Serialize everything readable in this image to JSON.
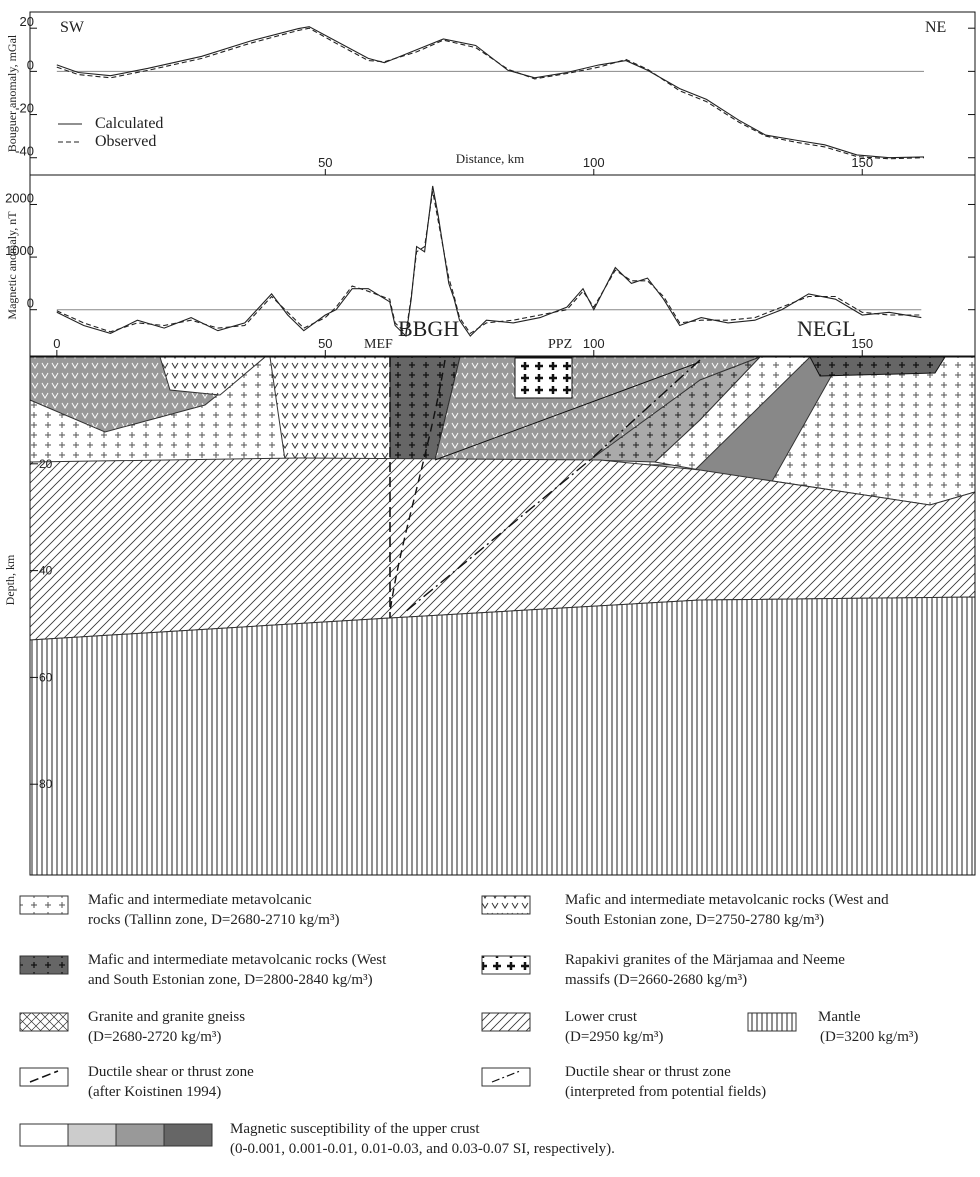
{
  "chart_data": [
    {
      "type": "line",
      "y_label": "Bouguer anomaly, mGal",
      "x_label": "Distance, km",
      "annotations": [
        "SW",
        "NE"
      ],
      "zero_line": true,
      "x": [
        0,
        4,
        10,
        17,
        27,
        36,
        45,
        47,
        52,
        58,
        61,
        67,
        72,
        78,
        84,
        89,
        95,
        101,
        106,
        110,
        116,
        121,
        127,
        132,
        138,
        143,
        149,
        155,
        161.5
      ],
      "series": [
        {
          "name": "Calculated",
          "color": "#222",
          "dashed": false,
          "values": [
            3,
            -0.5,
            -2,
            1.4,
            7,
            14,
            19.8,
            20.7,
            14,
            6,
            4,
            10,
            15,
            12,
            0.5,
            -3,
            -0.5,
            3,
            5,
            0.5,
            -8,
            -13,
            -22.6,
            -29.5,
            -32,
            -34,
            -38.7,
            -40,
            -39.6
          ]
        },
        {
          "name": "Observed",
          "color": "#222",
          "dashed": true,
          "values": [
            2,
            -1.5,
            -3,
            0.5,
            6,
            13,
            19,
            20,
            13,
            5,
            4.5,
            9,
            14.5,
            11,
            1,
            -3.5,
            -1,
            2,
            5.5,
            1,
            -9,
            -14,
            -23.5,
            -30,
            -33,
            -35,
            -39.5,
            -40.5,
            -40
          ]
        }
      ],
      "xlim": [
        -5,
        171
      ],
      "ylim": [
        -48,
        27.5
      ],
      "xticks": [
        50,
        100,
        150
      ],
      "yticks": [
        -40,
        -20,
        0,
        20
      ]
    },
    {
      "type": "line",
      "y_label": "Magnetic anomaly, nT",
      "zero_line": true,
      "x": [
        0,
        5,
        10,
        15,
        20,
        25,
        30,
        35,
        40,
        43,
        46,
        50,
        52,
        55,
        58,
        62,
        63,
        65,
        66,
        67,
        68.5,
        70,
        71,
        73,
        74,
        75,
        77,
        80,
        85,
        90,
        95,
        98,
        100,
        104,
        107,
        110,
        113,
        116,
        120,
        125,
        130,
        135,
        140,
        145,
        150,
        155,
        161
      ],
      "series": [
        {
          "color": "#222",
          "dashed": false,
          "values": [
            -50,
            -300,
            -450,
            -200,
            -350,
            -150,
            -400,
            -250,
            300,
            -100,
            -400,
            -100,
            0,
            400,
            400,
            150,
            -300,
            -500,
            200,
            1200,
            1100,
            2350,
            1800,
            500,
            200,
            -200,
            -500,
            -200,
            -250,
            -150,
            50,
            400,
            0,
            800,
            500,
            600,
            200,
            -300,
            -150,
            -250,
            -200,
            0,
            300,
            200,
            -100,
            -50,
            -150
          ]
        },
        {
          "color": "#222",
          "dashed": true,
          "values": [
            -20,
            -250,
            -420,
            -250,
            -300,
            -200,
            -350,
            -300,
            250,
            -50,
            -350,
            -150,
            50,
            450,
            350,
            200,
            -250,
            -450,
            250,
            1100,
            1200,
            2250,
            1700,
            600,
            250,
            -150,
            -450,
            -250,
            -200,
            -100,
            0,
            350,
            50,
            750,
            550,
            550,
            250,
            -250,
            -200,
            -200,
            -150,
            50,
            250,
            250,
            -50,
            -100,
            -100
          ]
        }
      ],
      "xlim": [
        -5,
        171
      ],
      "ylim": [
        -880,
        2560
      ],
      "xticks": [
        0,
        50,
        100,
        150
      ],
      "yticks": [
        0,
        1000,
        2000
      ]
    }
  ],
  "section": {
    "y_label": "Depth, km",
    "ylim": [
      0,
      97
    ],
    "yticks": [
      20,
      40,
      60,
      80
    ],
    "labels": [
      "MEF",
      "BBGH",
      "PPZ",
      "NEGL"
    ]
  },
  "legend": {
    "items": [
      [
        "Mafic and intermediate metavolcanic",
        "rocks (Tallinn zone, D=2680-2710 kg/m³)"
      ],
      [
        "Mafic and intermediate metavolcanic rocks (West and",
        "South Estonian zone, D=2750-2780 kg/m³)"
      ],
      [
        "Mafic and intermediate metavolcanic rocks (West",
        "and South Estonian zone, D=2800-2840 kg/m³)"
      ],
      [
        "Rapakivi granites of the Märjamaa and Neeme",
        "massifs (D=2660-2680 kg/m³)"
      ],
      [
        "Granite and granite gneiss",
        "(D=2680-2720 kg/m³)"
      ],
      [
        "Lower crust",
        "(D=2950 kg/m³)"
      ],
      [
        "Mantle",
        "(D=3200 kg/m³)"
      ],
      [
        "Ductile shear or thrust zone",
        "(after Koistinen  1994)"
      ],
      [
        "Ductile shear or thrust zone",
        "(interpreted from potential fields)"
      ],
      [
        "Magnetic susceptibility of the upper crust",
        "(0-0.001, 0.001-0.01, 0.01-0.03, and 0.03-0.07 SI, respectively)."
      ]
    ]
  }
}
